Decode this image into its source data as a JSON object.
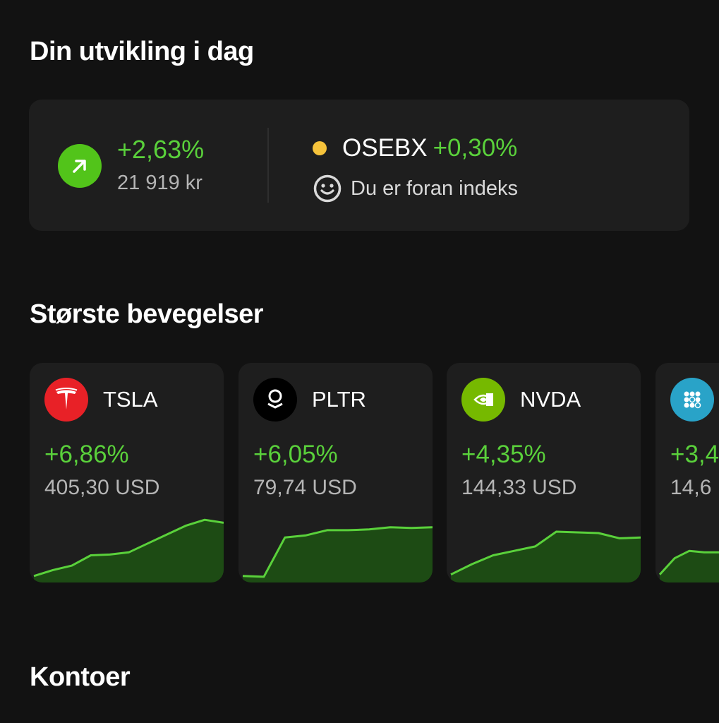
{
  "today": {
    "title": "Din utvikling i dag",
    "change_pct": "+2,63%",
    "change_amount": "21 919 kr",
    "index_name": "OSEBX",
    "index_change": "+0,30%",
    "index_status": "Du er foran indeks",
    "icons": {
      "trend": "arrow-up-right-icon",
      "index_dot": "yellow-dot",
      "status": "smiley-icon"
    },
    "colors": {
      "positive": "#5ad13b",
      "index_dot": "#f6c33b"
    }
  },
  "movers": {
    "title": "Største bevegelser",
    "items": [
      {
        "ticker": "TSLA",
        "change": "+6,86%",
        "price": "405,30 USD",
        "logo_color": "#e82127",
        "spark": [
          2,
          6,
          9,
          16,
          16.5,
          18,
          24,
          30,
          36,
          40,
          38
        ]
      },
      {
        "ticker": "PLTR",
        "change": "+6,05%",
        "price": "79,74 USD",
        "logo_color": "#000000",
        "spark": [
          2,
          1.5,
          28,
          29.5,
          33,
          33,
          33.5,
          35,
          34.5,
          35
        ]
      },
      {
        "ticker": "NVDA",
        "change": "+4,35%",
        "price": "144,33 USD",
        "logo_color": "#76b900",
        "spark": [
          3,
          10,
          16,
          19,
          22,
          32,
          31.5,
          31,
          27.5,
          28
        ]
      },
      {
        "ticker": "",
        "change": "+3,4",
        "price": "14,6",
        "logo_color": "#29a3c8",
        "spark": [
          3,
          14,
          19,
          18,
          18
        ]
      }
    ]
  },
  "accounts": {
    "title": "Kontoer"
  }
}
